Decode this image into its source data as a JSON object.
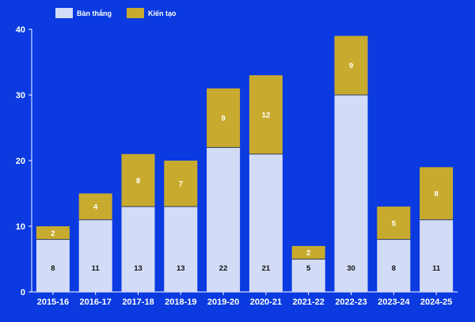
{
  "chart_data": {
    "type": "bar",
    "stacked": true,
    "categories": [
      "2015-16",
      "2016-17",
      "2017-18",
      "2018-19",
      "2019-20",
      "2020-21",
      "2021-22",
      "2022-23",
      "2023-24",
      "2024-25"
    ],
    "series": [
      {
        "name": "Bàn thắng",
        "values": [
          8,
          11,
          13,
          13,
          22,
          21,
          5,
          30,
          8,
          11
        ],
        "color": "#d3dcf7",
        "label_color": "#111111"
      },
      {
        "name": "Kiến tạo",
        "values": [
          2,
          4,
          8,
          7,
          9,
          12,
          2,
          9,
          5,
          8
        ],
        "color": "#c8aa2e",
        "label_color": "#ffffff"
      }
    ],
    "ylim": [
      0,
      40
    ],
    "yticks": [
      "0",
      "10",
      "20",
      "30",
      "40"
    ],
    "xlabel": "",
    "ylabel": "",
    "grid": false,
    "legend_position": "top-left",
    "background": "#0a3ae0",
    "axis_color": "#ffffff"
  }
}
